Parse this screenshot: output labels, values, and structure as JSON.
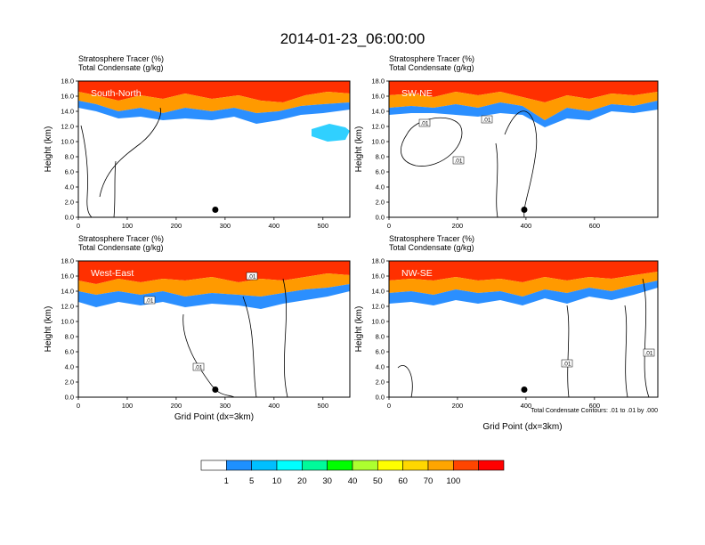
{
  "figure": {
    "title": "2014-01-23_06:00:00",
    "footer_xlabel": "Grid Point (dx=3km)",
    "contour_note": "Total Condensate Contours: .01 to .01 by .000"
  },
  "colorbar": {
    "labels": [
      "1",
      "5",
      "10",
      "20",
      "30",
      "40",
      "50",
      "60",
      "70",
      "100"
    ],
    "colors": [
      "#ffffff",
      "#1e90ff",
      "#00bfff",
      "#00ffff",
      "#00fa9a",
      "#00ff00",
      "#adff2f",
      "#ffff00",
      "#ffd700",
      "#ffa500",
      "#ff4500",
      "#ff0000"
    ]
  },
  "panel_header": {
    "line1": "Stratosphere Tracer   (%)",
    "line2": "Total Condensate   (g/kg)"
  },
  "y_axis": {
    "label": "Height (km)",
    "ticks": [
      "0.0",
      "2.0",
      "4.0",
      "6.0",
      "8.0",
      "10.0",
      "12.0",
      "14.0",
      "16.0",
      "18.0"
    ]
  },
  "chart_data": [
    {
      "type": "heatmap",
      "name": "South-North",
      "x_ticks": [
        0,
        100,
        200,
        300,
        400,
        500
      ],
      "xlim": [
        0,
        555
      ],
      "ylim": [
        0,
        18
      ],
      "marker_point": [
        280,
        1.0
      ],
      "contour_labels": []
    },
    {
      "type": "heatmap",
      "name": "SW-NE",
      "x_ticks": [
        0,
        200,
        400,
        600
      ],
      "xlim": [
        0,
        785
      ],
      "ylim": [
        0,
        18
      ],
      "marker_point": [
        395,
        1.0
      ],
      "contour_labels": [
        ".01",
        ".01",
        ".01"
      ]
    },
    {
      "type": "heatmap",
      "name": "West-East",
      "x_ticks": [
        0,
        100,
        200,
        300,
        400,
        500
      ],
      "xlim": [
        0,
        555
      ],
      "ylim": [
        0,
        18
      ],
      "xlabel": "Grid Point (dx=3km)",
      "marker_point": [
        280,
        1.0
      ],
      "contour_labels": [
        ".01",
        ".01",
        ".01"
      ]
    },
    {
      "type": "heatmap",
      "name": "NW-SE",
      "x_ticks": [
        0,
        200,
        400,
        600
      ],
      "xlim": [
        0,
        785
      ],
      "ylim": [
        0,
        18
      ],
      "marker_point": [
        395,
        1.0
      ],
      "contour_labels": [
        ".01",
        ".01"
      ]
    }
  ]
}
